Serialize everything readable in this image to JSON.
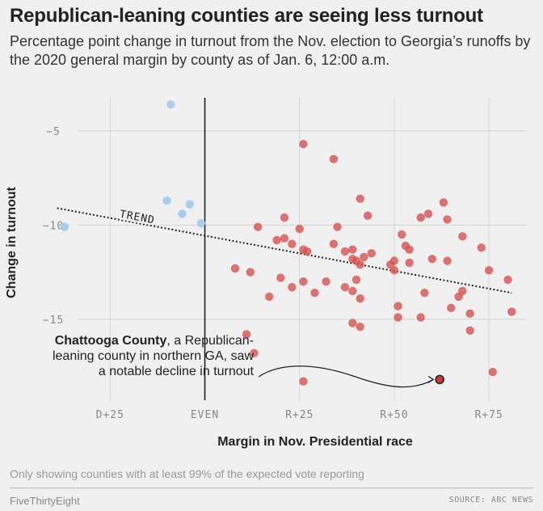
{
  "header": {
    "title": "Republican-leaning counties are seeing less turnout",
    "subtitle": "Percentage point change in turnout from the Nov. election to Georgia’s runoffs by the 2020 general margin by county as of Jan. 6, 12:00 a.m."
  },
  "footer": {
    "note": "Only showing counties with at least 99% of the expected vote reporting",
    "brand": "FiveThirtyEight",
    "source": "SOURCE: ABC NEWS"
  },
  "annotations": {
    "trend": "TREND",
    "callout_bold": "Chattooga County",
    "callout_rest": ", a Republican-leaning county in northern GA, saw a notable decline in turnout"
  },
  "colors": {
    "democratic": "#a9cdef",
    "republican": "#d65454",
    "highlight_fill": "#c93b3b",
    "highlight_stroke": "#222222",
    "even_line": "#222222",
    "grid": "#d4d4d4"
  },
  "chart_data": {
    "type": "scatter",
    "title": "Republican-leaning counties are seeing less turnout",
    "xlabel": "Margin in Nov. Presidential race",
    "ylabel": "Change in turnout",
    "x_ticks": [
      {
        "value": -25,
        "label": "D+25"
      },
      {
        "value": 0,
        "label": "EVEN"
      },
      {
        "value": 25,
        "label": "R+25"
      },
      {
        "value": 50,
        "label": "R+50"
      },
      {
        "value": 75,
        "label": "R+75"
      }
    ],
    "y_ticks": [
      {
        "value": -5,
        "label": "−5"
      },
      {
        "value": -10,
        "label": "−10"
      },
      {
        "value": -15,
        "label": "−15"
      }
    ],
    "xlim": [
      -40,
      85
    ],
    "ylim": [
      -19.3,
      -2.9
    ],
    "grid": true,
    "trend": {
      "x": [
        -39,
        81
      ],
      "y": [
        -9.1,
        -13.6
      ]
    },
    "series": [
      {
        "group": "democratic",
        "points": [
          [
            -37,
            -10.1
          ],
          [
            -9,
            -3.6
          ],
          [
            -10,
            -8.7
          ],
          [
            -6,
            -9.4
          ],
          [
            -4,
            -8.9
          ],
          [
            -1,
            -9.9
          ]
        ]
      },
      {
        "group": "republican",
        "points": [
          [
            26,
            -5.7
          ],
          [
            34,
            -6.5
          ],
          [
            41,
            -8.6
          ],
          [
            43,
            -9.5
          ],
          [
            21,
            -9.6
          ],
          [
            25,
            -10.2
          ],
          [
            35,
            -10.1
          ],
          [
            14,
            -10.1
          ],
          [
            19,
            -10.8
          ],
          [
            21,
            -10.7
          ],
          [
            23,
            -11.0
          ],
          [
            26,
            -11.3
          ],
          [
            27,
            -11.4
          ],
          [
            34,
            -11.0
          ],
          [
            37,
            -11.4
          ],
          [
            42,
            -11.7
          ],
          [
            39,
            -11.8
          ],
          [
            40,
            -11.9
          ],
          [
            41,
            -12.1
          ],
          [
            44,
            -11.5
          ],
          [
            39,
            -11.3
          ],
          [
            50,
            -11.9
          ],
          [
            52,
            -10.5
          ],
          [
            53,
            -11.1
          ],
          [
            54,
            -11.3
          ],
          [
            57,
            -9.6
          ],
          [
            59,
            -9.4
          ],
          [
            63,
            -8.8
          ],
          [
            64,
            -9.7
          ],
          [
            68,
            -10.6
          ],
          [
            73,
            -11.2
          ],
          [
            60,
            -11.8
          ],
          [
            64,
            -11.9
          ],
          [
            8,
            -12.3
          ],
          [
            12,
            -12.5
          ],
          [
            20,
            -12.8
          ],
          [
            23,
            -13.3
          ],
          [
            26,
            -13.0
          ],
          [
            29,
            -13.6
          ],
          [
            32,
            -13.0
          ],
          [
            37,
            -13.3
          ],
          [
            40,
            -12.9
          ],
          [
            41,
            -13.9
          ],
          [
            39,
            -13.5
          ],
          [
            49,
            -12.1
          ],
          [
            50,
            -12.4
          ],
          [
            54,
            -12.0
          ],
          [
            58,
            -13.6
          ],
          [
            65,
            -14.4
          ],
          [
            67,
            -13.8
          ],
          [
            68,
            -13.5
          ],
          [
            70,
            -14.7
          ],
          [
            75,
            -12.4
          ],
          [
            80,
            -12.9
          ],
          [
            81,
            -14.6
          ],
          [
            17,
            -13.8
          ],
          [
            51,
            -14.3
          ],
          [
            51,
            -14.9
          ],
          [
            57,
            -14.9
          ],
          [
            39,
            -15.2
          ],
          [
            41,
            -15.4
          ],
          [
            70,
            -15.6
          ],
          [
            11,
            -15.8
          ],
          [
            13,
            -16.8
          ],
          [
            26,
            -18.3
          ],
          [
            76,
            -17.8
          ]
        ]
      },
      {
        "group": "highlight",
        "name": "Chattooga County",
        "points": [
          [
            62,
            -18.2
          ]
        ]
      }
    ]
  }
}
